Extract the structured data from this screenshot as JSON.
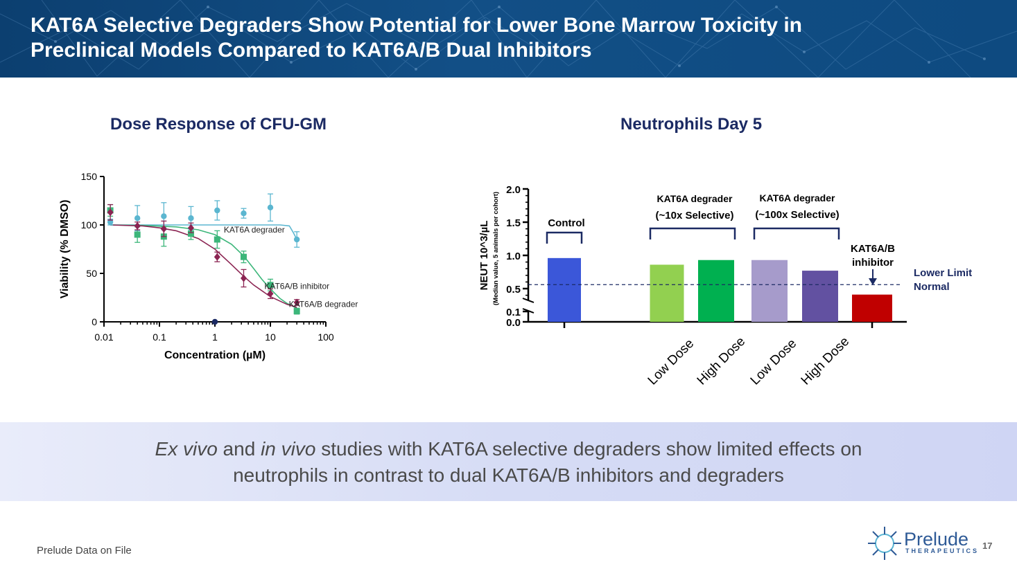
{
  "header": {
    "title_line1": "KAT6A Selective Degraders Show Potential for Lower Bone Marrow Toxicity in",
    "title_line2": "Preclinical Models Compared to KAT6A/B Dual Inhibitors"
  },
  "colors": {
    "header_bg": "#0f4a80",
    "teal": "#5bb6d0",
    "green": "#3cb67a",
    "maroon": "#8b2452",
    "navy": "#1b2a63"
  },
  "chart_data": [
    {
      "type": "scatter",
      "title": "Dose Response of CFU-GM",
      "xlabel": "Concentration (µM)",
      "ylabel": "Viability (% DMSO)",
      "x_scale": "log",
      "xlim": [
        0.01,
        100
      ],
      "ylim": [
        0,
        150
      ],
      "x_ticks": [
        "0.01",
        "0.1",
        "1",
        "10",
        "100"
      ],
      "y_ticks": [
        "0",
        "50",
        "100",
        "150"
      ],
      "series": [
        {
          "name": "KAT6A degrader",
          "color": "#5bb6d0",
          "marker": "circle",
          "x": [
            0.013,
            0.04,
            0.12,
            0.37,
            1.1,
            3.3,
            10,
            30
          ],
          "y": [
            103,
            107,
            109,
            107,
            115,
            112,
            118,
            85
          ],
          "err": [
            3,
            13,
            14,
            12,
            10,
            5,
            14,
            8
          ],
          "fit_x": [
            0.013,
            0.05,
            0.2,
            1,
            5,
            15,
            22,
            26,
            30
          ],
          "fit_y": [
            100,
            100,
            100,
            100,
            100,
            100,
            99,
            92,
            85
          ]
        },
        {
          "name": "KAT6A/B inhibitor",
          "color": "#3cb67a",
          "marker": "square",
          "x": [
            0.013,
            0.04,
            0.12,
            0.37,
            1.1,
            3.3,
            10,
            30
          ],
          "y": [
            115,
            90,
            88,
            91,
            85,
            67,
            38,
            11
          ],
          "err": [
            6,
            8,
            10,
            6,
            9,
            6,
            6,
            3
          ],
          "fit_x": [
            0.013,
            0.05,
            0.2,
            0.5,
            1,
            2,
            3.3,
            5,
            7,
            10,
            15,
            20,
            30
          ],
          "fit_y": [
            100,
            99.5,
            98,
            95,
            90,
            80,
            68,
            55,
            44,
            34,
            24,
            19,
            14
          ]
        },
        {
          "name": "KAT6A/B degrader",
          "color": "#8b2452",
          "marker": "diamond",
          "x": [
            0.013,
            0.04,
            0.12,
            0.37,
            1.1,
            3.3,
            10,
            30
          ],
          "y": [
            113,
            99,
            96,
            97,
            67,
            45,
            29,
            20
          ],
          "err": [
            8,
            4,
            8,
            5,
            5,
            9,
            5,
            3
          ],
          "fit_x": [
            0.013,
            0.05,
            0.1,
            0.2,
            0.5,
            1,
            2,
            3.3,
            5,
            10,
            20,
            30
          ],
          "fit_y": [
            100,
            99,
            97,
            94,
            86,
            75,
            59,
            47,
            38,
            26,
            18,
            15
          ]
        }
      ],
      "extra_points": [
        {
          "x": 1,
          "y": 0,
          "color": "#1b2a63"
        }
      ],
      "legend_placement": "inline labels at right of curves"
    },
    {
      "type": "bar",
      "title": "Neutrophils Day 5",
      "ylabel": "NEUT 10^3/µL",
      "ylabel_sub": "(Median value, 5 animals per cohort)",
      "ylim": [
        0,
        2.0
      ],
      "y_ticks": [
        "0.0",
        "0.1",
        "0.5",
        "1.0",
        "1.5",
        "2.0"
      ],
      "categories": [
        "",
        "Low Dose",
        "High Dose",
        "Low Dose",
        "High Dose",
        ""
      ],
      "values": [
        0.96,
        0.86,
        0.93,
        0.93,
        0.77,
        0.41
      ],
      "colors": [
        "#3b57d9",
        "#92d050",
        "#00b050",
        "#a69bcb",
        "#6251a1",
        "#c00000"
      ],
      "groups": [
        {
          "label": "Control",
          "bars": [
            0
          ]
        },
        {
          "label_line1": "KAT6A degrader",
          "label_line2": "(~10x Selective)",
          "bars": [
            1,
            2
          ]
        },
        {
          "label_line1": "KAT6A degrader",
          "label_line2": "(~100x Selective)",
          "bars": [
            3,
            4
          ]
        },
        {
          "label_line1": "KAT6A/B",
          "label_line2": "inhibitor",
          "bars": [
            5
          ]
        }
      ],
      "reference_line": {
        "value": 0.56,
        "label_line1": "Lower Limit",
        "label_line2": "Normal"
      },
      "axis_break": true
    }
  ],
  "banner": {
    "part1": "Ex vivo",
    "part2": " and ",
    "part3": "in vivo",
    "part4": " studies with KAT6A selective degraders show limited effects on",
    "line2": "neutrophils in contrast to dual KAT6A/B inhibitors and degraders"
  },
  "footer": {
    "note": "Prelude Data on File",
    "page": "17",
    "logo_word": "Prelude",
    "logo_sub": "THERAPEUTICS"
  }
}
